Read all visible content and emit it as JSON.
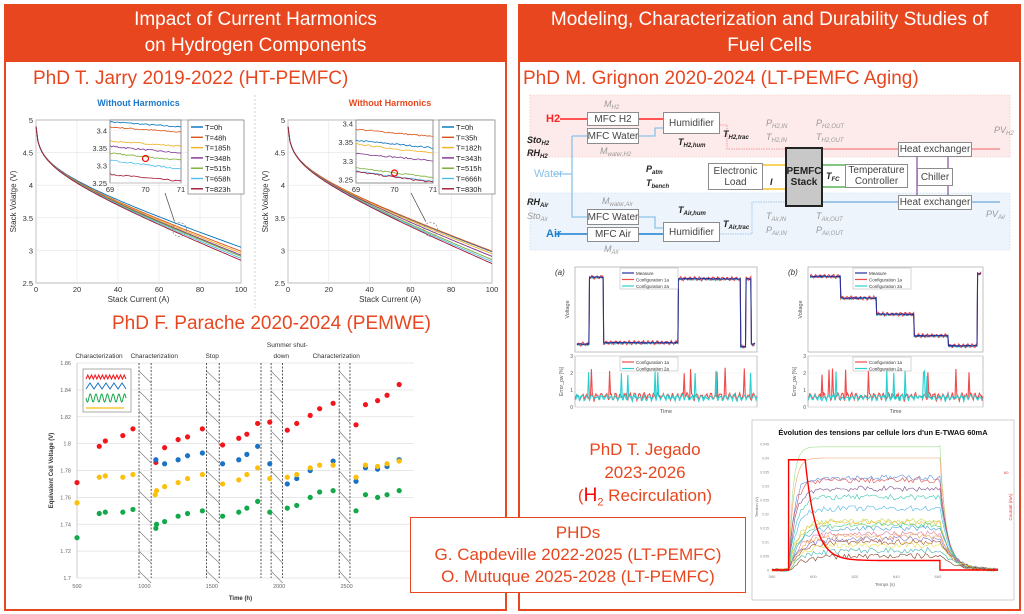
{
  "left_panel": {
    "header_lines": [
      "Impact of Current Harmonics",
      "on Hydrogen Components"
    ],
    "phd_jarry": "PhD T. Jarry 2019-2022 (HT-PEMFC)",
    "phd_parache": "PhD F. Parache 2020-2024 (PEMWE)"
  },
  "right_panel": {
    "header_lines": [
      "Modeling, Characterization and Durability Studies of",
      "Fuel Cells"
    ],
    "phd_grignon": "PhD M. Grignon 2020-2024 (LT-PEMFC Aging)",
    "jegado": {
      "line1": "PhD T. Jegado",
      "line2": "2023-2026",
      "open": "(",
      "h": "H",
      "sub": "2",
      "rest": " Recirculation)"
    }
  },
  "phds_box": {
    "title": "PHDs",
    "lines": [
      "G. Capdeville 2022-2025 (LT-PEMFC)",
      "O. Mutuque 2025-2028 (LT-PEMFC)"
    ]
  },
  "diagram": {
    "boxes": {
      "mfc_h2": "MFC H2",
      "mfc_water_h2": "MFC Water",
      "humidifier_h2": "Humidifier",
      "heat_exchanger_h2": "Heat exchanger",
      "electronic_load": "Electronic Load",
      "stack": "PEMFC Stack",
      "temperature_controller": "Temperature Controller",
      "chiller": "Chiller",
      "heat_exchanger_air": "Heat exchanger",
      "mfc_water_air": "MFC Water",
      "mfc_air": "MFC Air",
      "humidifier_air": "Humidifier"
    },
    "inputs": {
      "h2": "H2",
      "water": "Water",
      "air": "Air"
    },
    "labels": [
      {
        "id": "m_h2",
        "main": "M",
        "sub": "H2"
      },
      {
        "id": "m_water_h2",
        "main": "M",
        "sub": "water,H2"
      },
      {
        "id": "sto_h2",
        "main": "Sto",
        "sub": "H2"
      },
      {
        "id": "rh_h2",
        "main": "RH",
        "sub": "H2"
      },
      {
        "id": "t_h2_hum",
        "main": "T",
        "sub": "H2,hum"
      },
      {
        "id": "t_h2_trac",
        "main": "T",
        "sub": "H2,trac"
      },
      {
        "id": "p_h2_in",
        "main": "P",
        "sub": "H2,IN"
      },
      {
        "id": "t_h2_in",
        "main": "T",
        "sub": "H2,IN"
      },
      {
        "id": "p_h2_out",
        "main": "P",
        "sub": "H2,OUT"
      },
      {
        "id": "t_h2_out",
        "main": "T",
        "sub": "H2,OUT"
      },
      {
        "id": "pv_h2",
        "main": "PV",
        "sub": "H2"
      },
      {
        "id": "p_atm",
        "main": "P",
        "sub": "atm"
      },
      {
        "id": "t_bench",
        "main": "T",
        "sub": "bench"
      },
      {
        "id": "i",
        "main": "I",
        "sub": ""
      },
      {
        "id": "t_fc",
        "main": "T",
        "sub": "FC"
      },
      {
        "id": "rh_air",
        "main": "RH",
        "sub": "Air"
      },
      {
        "id": "sto_air",
        "main": "Sto",
        "sub": "Air"
      },
      {
        "id": "m_water_air",
        "main": "M",
        "sub": "water,Air"
      },
      {
        "id": "m_air",
        "main": "M",
        "sub": "Air"
      },
      {
        "id": "t_air_hum",
        "main": "T",
        "sub": "Air,hum"
      },
      {
        "id": "t_air_trac",
        "main": "T",
        "sub": "Air,trac"
      },
      {
        "id": "t_air_in",
        "main": "T",
        "sub": "Air,IN"
      },
      {
        "id": "p_air_in",
        "main": "P",
        "sub": "Air,IN"
      },
      {
        "id": "t_air_out",
        "main": "T",
        "sub": "Air,OUT"
      },
      {
        "id": "p_air_out",
        "main": "P",
        "sub": "Air,OUT"
      },
      {
        "id": "pv_air",
        "main": "PV",
        "sub": "Air"
      }
    ]
  },
  "chart_data": [
    {
      "id": "polar_left",
      "type": "line",
      "title": "Without Harmonics",
      "title_color": "#1f77c8",
      "xlabel": "Stack Current (A)",
      "ylabel": "Stack Volatge (V)",
      "xlim": [
        0,
        100
      ],
      "ylim": [
        2.5,
        5
      ],
      "xticks": [
        0,
        20,
        40,
        60,
        80,
        100
      ],
      "yticks": [
        2.5,
        3,
        3.5,
        4,
        4.5,
        5
      ],
      "series": [
        {
          "name": "T=0h",
          "color": "#0072BD",
          "voltage_at_100A": 3.05,
          "inset": [
            3.425,
            3.41
          ]
        },
        {
          "name": "T=48h",
          "color": "#D95319",
          "voltage_at_100A": 2.99,
          "inset": [
            3.41,
            3.395
          ]
        },
        {
          "name": "T=185h",
          "color": "#EDB120",
          "voltage_at_100A": 2.96,
          "inset": [
            3.37,
            3.355
          ]
        },
        {
          "name": "T=348h",
          "color": "#7E2F8E",
          "voltage_at_100A": 2.93,
          "inset": [
            3.355,
            3.335
          ]
        },
        {
          "name": "T=515h",
          "color": "#77AC30",
          "voltage_at_100A": 2.91,
          "inset": [
            3.335,
            3.315
          ]
        },
        {
          "name": "T=658h",
          "color": "#4DBEEE",
          "voltage_at_100A": 2.88,
          "inset": [
            3.315,
            3.29
          ]
        },
        {
          "name": "T=823h",
          "color": "#A2142F",
          "voltage_at_100A": 2.85,
          "inset": [
            3.275,
            3.255
          ]
        }
      ],
      "inset": {
        "xlim": [
          69,
          71
        ],
        "ylim": [
          3.25,
          3.43
        ],
        "xticks": [
          69,
          70,
          71
        ],
        "yticks": [
          3.25,
          3.3,
          3.35,
          3.4
        ],
        "marker": [
          70,
          3.32
        ]
      }
    },
    {
      "id": "polar_right",
      "type": "line",
      "title": "Without Harmonics",
      "title_color": "#e8461e",
      "xlabel": "Stack Current (A)",
      "ylabel": "Stack Volatge (V)",
      "xlim": [
        0,
        100
      ],
      "ylim": [
        2.5,
        5
      ],
      "xticks": [
        0,
        20,
        40,
        60,
        80,
        100
      ],
      "yticks": [
        2.5,
        3,
        3.5,
        4,
        4.5,
        5
      ],
      "series": [
        {
          "name": "T=0h",
          "color": "#0072BD",
          "voltage_at_100A": 2.98,
          "inset": [
            3.355,
            3.335
          ]
        },
        {
          "name": "T=35h",
          "color": "#D95319",
          "voltage_at_100A": 2.99,
          "inset": [
            3.385,
            3.365
          ]
        },
        {
          "name": "T=182h",
          "color": "#EDB120",
          "voltage_at_100A": 2.95,
          "inset": [
            3.345,
            3.32
          ]
        },
        {
          "name": "T=343h",
          "color": "#7E2F8E",
          "voltage_at_100A": 2.91,
          "inset": [
            3.32,
            3.3
          ]
        },
        {
          "name": "T=515h",
          "color": "#77AC30",
          "voltage_at_100A": 2.86,
          "inset": [
            3.28,
            3.255
          ]
        },
        {
          "name": "T=666h",
          "color": "#4DBEEE",
          "voltage_at_100A": 2.83,
          "inset": [
            3.272,
            3.245
          ]
        },
        {
          "name": "T=830h",
          "color": "#A2142F",
          "voltage_at_100A": 2.8,
          "inset": [
            3.27,
            3.242
          ]
        }
      ],
      "inset": {
        "xlim": [
          69,
          71
        ],
        "ylim": [
          3.24,
          3.41
        ],
        "xticks": [
          69,
          70,
          71
        ],
        "yticks": [
          3.25,
          3.3,
          3.35,
          3.4
        ],
        "marker": [
          70,
          3.267
        ]
      }
    },
    {
      "id": "pemwe",
      "type": "scatter",
      "xlabel": "Time (h)",
      "ylabel": "Equivalent Cell Voltage (V)",
      "xlim": [
        500,
        3000
      ],
      "ylim": [
        1.7,
        1.86
      ],
      "xticks": [
        500,
        1000,
        1500,
        2000,
        2500
      ],
      "yticks": [
        1.7,
        1.72,
        1.74,
        1.76,
        1.78,
        1.8,
        1.82,
        1.84,
        1.86
      ],
      "phases": [
        {
          "label": "Characterization",
          "center": 960
        },
        {
          "label": "Characterization",
          "center": 1370
        },
        {
          "label": "Stop",
          "center": 1800
        },
        {
          "label": "Summer shut-",
          "label2": "down",
          "center": 2060
        },
        {
          "label": "Characterization",
          "center": 2720
        }
      ],
      "breaks": [
        [
          960,
          1050
        ],
        [
          1460,
          1555
        ],
        [
          1865,
          1865
        ],
        [
          1940,
          2025
        ],
        [
          2445,
          2525
        ]
      ],
      "series": [
        {
          "color": "#f2161c",
          "points": [
            [
              500,
              1.771
            ],
            [
              665,
              1.798
            ],
            [
              710,
              1.802
            ],
            [
              840,
              1.806
            ],
            [
              915,
              1.811
            ],
            [
              1085,
              1.786
            ],
            [
              1150,
              1.797
            ],
            [
              1250,
              1.803
            ],
            [
              1320,
              1.805
            ],
            [
              1430,
              1.811
            ],
            [
              1580,
              1.799
            ],
            [
              1700,
              1.804
            ],
            [
              1760,
              1.807
            ],
            [
              1840,
              1.815
            ],
            [
              1930,
              1.816
            ],
            [
              2060,
              1.81
            ],
            [
              2130,
              1.815
            ],
            [
              2230,
              1.821
            ],
            [
              2300,
              1.826
            ],
            [
              2400,
              1.83
            ],
            [
              2570,
              1.814
            ],
            [
              2640,
              1.829
            ],
            [
              2730,
              1.832
            ],
            [
              2800,
              1.836
            ],
            [
              2890,
              1.844
            ]
          ]
        },
        {
          "color": "#1a73c4",
          "points": [
            [
              1085,
              1.788
            ],
            [
              1150,
              1.785
            ],
            [
              1250,
              1.788
            ],
            [
              1320,
              1.791
            ],
            [
              1430,
              1.793
            ],
            [
              1580,
              1.785
            ],
            [
              1700,
              1.788
            ],
            [
              1760,
              1.792
            ],
            [
              1840,
              1.798
            ],
            [
              1930,
              1.785
            ],
            [
              2060,
              1.77
            ],
            [
              2130,
              1.774
            ],
            [
              2230,
              1.78
            ],
            [
              2400,
              1.787
            ],
            [
              2570,
              1.772
            ],
            [
              2640,
              1.782
            ],
            [
              2730,
              1.781
            ],
            [
              2800,
              1.783
            ],
            [
              2890,
              1.788
            ]
          ]
        },
        {
          "color": "#fbbf0c",
          "points": [
            [
              500,
              1.756
            ],
            [
              665,
              1.775
            ],
            [
              710,
              1.776
            ],
            [
              840,
              1.775
            ],
            [
              915,
              1.777
            ],
            [
              1080,
              1.762
            ],
            [
              1090,
              1.765
            ],
            [
              1150,
              1.768
            ],
            [
              1250,
              1.771
            ],
            [
              1320,
              1.774
            ],
            [
              1430,
              1.777
            ],
            [
              1580,
              1.77
            ],
            [
              1700,
              1.773
            ],
            [
              1760,
              1.777
            ],
            [
              1840,
              1.782
            ],
            [
              1930,
              1.774
            ],
            [
              2060,
              1.775
            ],
            [
              2130,
              1.777
            ],
            [
              2230,
              1.782
            ],
            [
              2300,
              1.784
            ],
            [
              2400,
              1.784
            ],
            [
              2570,
              1.775
            ],
            [
              2640,
              1.784
            ],
            [
              2730,
              1.783
            ],
            [
              2800,
              1.785
            ],
            [
              2890,
              1.787
            ]
          ]
        },
        {
          "color": "#13a84a",
          "points": [
            [
              500,
              1.73
            ],
            [
              665,
              1.748
            ],
            [
              710,
              1.749
            ],
            [
              840,
              1.749
            ],
            [
              915,
              1.751
            ],
            [
              1085,
              1.737
            ],
            [
              1090,
              1.74
            ],
            [
              1150,
              1.742
            ],
            [
              1250,
              1.746
            ],
            [
              1320,
              1.748
            ],
            [
              1430,
              1.75
            ],
            [
              1580,
              1.746
            ],
            [
              1700,
              1.749
            ],
            [
              1760,
              1.752
            ],
            [
              1840,
              1.757
            ],
            [
              1930,
              1.749
            ],
            [
              2060,
              1.752
            ],
            [
              2130,
              1.754
            ],
            [
              2230,
              1.76
            ],
            [
              2300,
              1.764
            ],
            [
              2400,
              1.765
            ],
            [
              2570,
              1.75
            ],
            [
              2640,
              1.762
            ],
            [
              2730,
              1.76
            ],
            [
              2800,
              1.762
            ],
            [
              2890,
              1.765
            ]
          ]
        }
      ]
    },
    {
      "id": "model_a",
      "type": "line",
      "panel_label": "(a)",
      "ylabel": "Voltage",
      "xlabel": "Time",
      "error_ylabel": "Error_pw [%]",
      "error_yticks": [
        0,
        1,
        2,
        3
      ],
      "legend": [
        "Measure",
        "Configuration 1a",
        "Configuration 2a"
      ],
      "error_legend": [
        "Configuration 1a",
        "Configuration 2a"
      ],
      "colors": [
        "#1f2f9e",
        "#f04a4a",
        "#2ad0d0"
      ],
      "voltage_steps": [
        [
          0,
          0.07,
          0.05
        ],
        [
          0.07,
          0.15,
          0.92
        ],
        [
          0.15,
          0.57,
          0.07
        ],
        [
          0.57,
          0.92,
          0.9
        ],
        [
          0.92,
          0.95,
          0.02
        ],
        [
          0.95,
          0.98,
          0.9
        ],
        [
          0.98,
          1,
          0.05
        ]
      ]
    },
    {
      "id": "model_b",
      "type": "line",
      "panel_label": "(b)",
      "ylabel": "Voltage",
      "xlabel": "Time",
      "error_ylabel": "Error_pw [%]",
      "error_yticks": [
        0,
        1,
        2,
        3
      ],
      "legend": [
        "Measure",
        "Configuration 1a",
        "Configuration 2a"
      ],
      "error_legend": [
        "Configuration 1a",
        "Configuration 2a"
      ],
      "colors": [
        "#1f2f9e",
        "#f04a4a",
        "#2ad0d0"
      ],
      "voltage_steps": [
        [
          0,
          0.18,
          0.93
        ],
        [
          0.18,
          0.39,
          0.65
        ],
        [
          0.39,
          0.61,
          0.44
        ],
        [
          0.61,
          0.81,
          0.16
        ],
        [
          0.81,
          0.98,
          0.03
        ],
        [
          0.98,
          1,
          0.97
        ]
      ]
    },
    {
      "id": "etwag",
      "type": "line",
      "title": "Évolution des tensions par cellule lors d'un E-TWAG 60mA",
      "xlabel": "Temps (s)",
      "ylabel": "Tension (V)",
      "y2label": "Courant (mA)",
      "xlim": [
        580,
        689
      ],
      "ylim": [
        0,
        0.045
      ],
      "xticks": [
        580,
        600,
        620,
        640,
        660
      ],
      "yticks": [
        0,
        0.005,
        0.01,
        0.015,
        0.02,
        0.025,
        0.03,
        0.035,
        0.04,
        0.045
      ],
      "y2_tick": "60",
      "current": {
        "t_on": 588,
        "t_peak_end": 596,
        "t_off": 661,
        "peak_mA": 70,
        "final_mA": 6,
        "y2max_mA": 80
      },
      "cell_plateaus": [
        0.044,
        0.04,
        0.033,
        0.032,
        0.029,
        0.026,
        0.022,
        0.0175,
        0.017,
        0.016,
        0.015,
        0.013,
        0.012,
        0.011,
        0.01,
        0.009,
        0.007,
        0.005
      ],
      "cell_colors": [
        "#9fe08a",
        "#f5a36b",
        "#5b8fe0",
        "#e05050",
        "#7a4f8a",
        "#3cc7b5",
        "#52b6e6",
        "#c8d84a",
        "#e8c040",
        "#4ccf80",
        "#4da0d8",
        "#e07aa0",
        "#f0a050",
        "#8070c8",
        "#a05030",
        "#e8e050",
        "#40b0b0",
        "#804020"
      ]
    }
  ]
}
